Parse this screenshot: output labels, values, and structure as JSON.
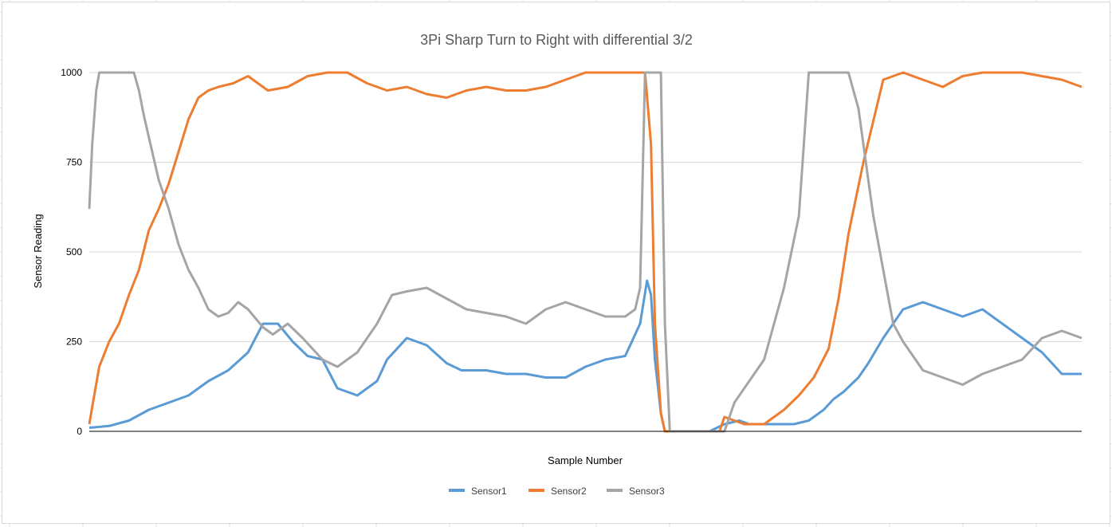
{
  "colors": {
    "sensor1": "#5b9bd5",
    "sensor2": "#ed7d31",
    "sensor3": "#a5a5a5",
    "gridline": "#d9d9d9",
    "axis": "#000000",
    "title": "#595959"
  },
  "chart_data": {
    "type": "line",
    "title": "3Pi Sharp Turn to Right with differential 3/2",
    "xlabel": "Sample Number",
    "ylabel": "Sensor Reading",
    "ylim": [
      0,
      1000
    ],
    "yticks": [
      "0",
      "250",
      "500",
      "750",
      "1000"
    ],
    "xlim": [
      0,
      1000
    ],
    "grid": "horizontal",
    "legend_position": "bottom",
    "series": [
      {
        "name": "Sensor1",
        "color": "#5b9bd5",
        "x": [
          0,
          20,
          40,
          60,
          80,
          100,
          120,
          140,
          160,
          175,
          190,
          205,
          220,
          235,
          250,
          270,
          290,
          300,
          320,
          340,
          360,
          375,
          385,
          400,
          420,
          440,
          460,
          480,
          500,
          520,
          540,
          555,
          562,
          566,
          570,
          576,
          580,
          585,
          590,
          610,
          625,
          640,
          655,
          665,
          680,
          695,
          710,
          725,
          740,
          750,
          760,
          775,
          785,
          800,
          820,
          840,
          860,
          880,
          900,
          920,
          940,
          960,
          980,
          1000
        ],
        "y": [
          10,
          15,
          30,
          60,
          80,
          100,
          140,
          170,
          220,
          300,
          300,
          250,
          210,
          200,
          120,
          100,
          140,
          200,
          260,
          240,
          190,
          170,
          170,
          170,
          160,
          160,
          150,
          150,
          180,
          200,
          210,
          300,
          420,
          380,
          200,
          50,
          0,
          0,
          0,
          0,
          0,
          20,
          30,
          20,
          20,
          20,
          20,
          30,
          60,
          90,
          110,
          150,
          190,
          260,
          340,
          360,
          340,
          320,
          340,
          300,
          260,
          220,
          160,
          160
        ]
      },
      {
        "name": "Sensor2",
        "color": "#ed7d31",
        "x": [
          0,
          5,
          10,
          20,
          30,
          40,
          50,
          60,
          70,
          80,
          90,
          100,
          110,
          120,
          130,
          145,
          160,
          180,
          200,
          220,
          240,
          260,
          280,
          300,
          320,
          340,
          360,
          380,
          400,
          420,
          440,
          460,
          480,
          500,
          520,
          540,
          555,
          560,
          566,
          570,
          576,
          580,
          585,
          590,
          610,
          625,
          635,
          640,
          660,
          680,
          700,
          715,
          730,
          745,
          755,
          765,
          780,
          800,
          820,
          840,
          860,
          880,
          900,
          920,
          940,
          960,
          980,
          1000
        ],
        "y": [
          20,
          100,
          180,
          250,
          300,
          380,
          450,
          560,
          620,
          690,
          780,
          870,
          930,
          950,
          960,
          970,
          990,
          950,
          960,
          990,
          1000,
          1000,
          970,
          950,
          960,
          940,
          930,
          950,
          960,
          950,
          950,
          960,
          980,
          1000,
          1000,
          1000,
          1000,
          1000,
          800,
          300,
          50,
          0,
          0,
          0,
          0,
          0,
          0,
          40,
          20,
          20,
          60,
          100,
          150,
          230,
          370,
          550,
          750,
          980,
          1000,
          980,
          960,
          990,
          1000,
          1000,
          1000,
          990,
          980,
          960
        ]
      },
      {
        "name": "Sensor3",
        "color": "#a5a5a5",
        "x": [
          0,
          3,
          7,
          10,
          15,
          20,
          30,
          45,
          50,
          55,
          60,
          70,
          80,
          90,
          100,
          110,
          120,
          130,
          140,
          150,
          160,
          175,
          185,
          200,
          215,
          235,
          250,
          270,
          290,
          305,
          320,
          340,
          360,
          380,
          400,
          420,
          440,
          460,
          480,
          500,
          520,
          540,
          550,
          555,
          560,
          566,
          570,
          576,
          580,
          585,
          590,
          610,
          625,
          635,
          640,
          650,
          660,
          680,
          700,
          715,
          720,
          725,
          740,
          755,
          765,
          775,
          785,
          790,
          800,
          810,
          820,
          840,
          860,
          880,
          900,
          920,
          940,
          960,
          980,
          1000
        ],
        "y": [
          620,
          800,
          950,
          1000,
          1000,
          1000,
          1000,
          1000,
          950,
          880,
          820,
          700,
          620,
          520,
          450,
          400,
          340,
          320,
          330,
          360,
          340,
          290,
          270,
          300,
          260,
          200,
          180,
          220,
          300,
          380,
          390,
          400,
          370,
          340,
          330,
          320,
          300,
          340,
          360,
          340,
          320,
          320,
          340,
          400,
          1000,
          1000,
          1000,
          1000,
          300,
          0,
          0,
          0,
          0,
          0,
          0,
          80,
          120,
          200,
          400,
          600,
          800,
          1000,
          1000,
          1000,
          1000,
          900,
          700,
          600,
          450,
          300,
          250,
          170,
          150,
          130,
          160,
          180,
          200,
          260,
          280,
          260
        ]
      }
    ]
  }
}
